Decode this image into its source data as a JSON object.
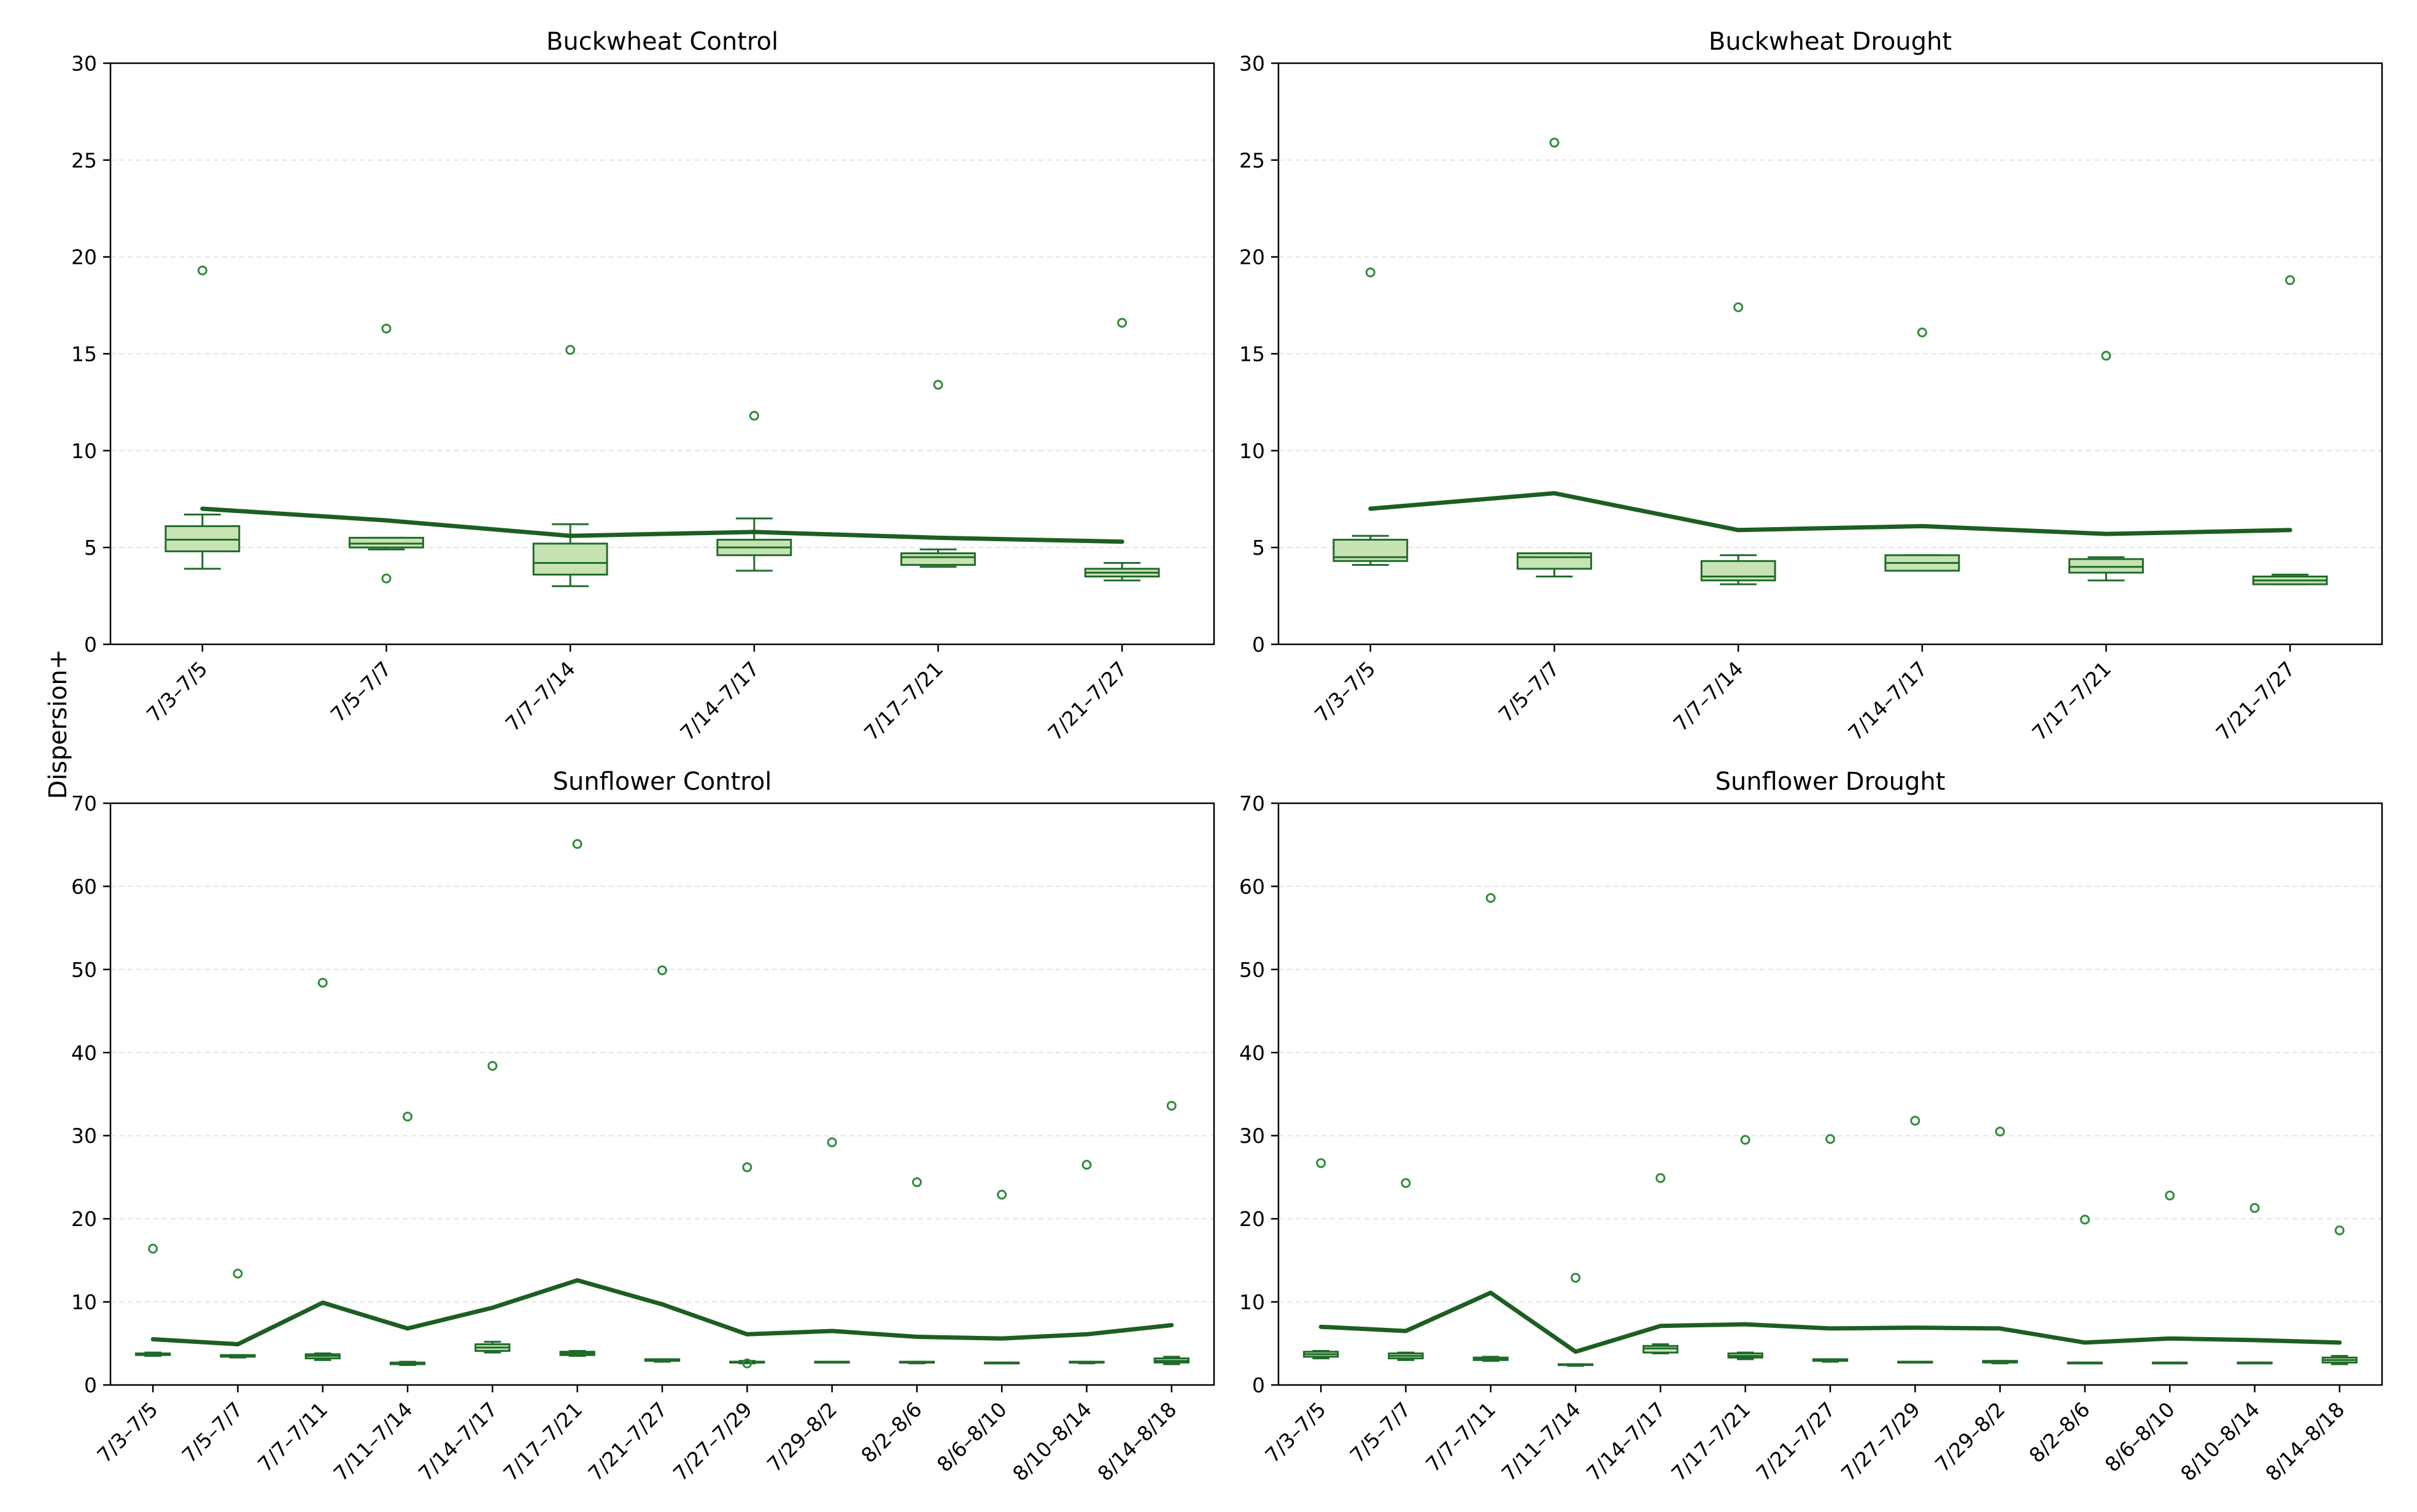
{
  "figure": {
    "ylabel": "Dispersion+",
    "colors": {
      "box_fill": "#c7e3b3",
      "box_edge": "#1f6b2a",
      "mean_line": "#1d5e22",
      "outlier": "#2e8b3a",
      "grid": "#e3e3e3",
      "axis": "#000000"
    }
  },
  "chart_data": [
    {
      "type": "box",
      "title": "Buckwheat Control",
      "ylim": [
        0,
        30
      ],
      "yticks": [
        0,
        5,
        10,
        15,
        20,
        25,
        30
      ],
      "categories": [
        "7/3–7/5",
        "7/5–7/7",
        "7/7–7/14",
        "7/14–7/17",
        "7/17–7/21",
        "7/21–7/27"
      ],
      "boxes": [
        {
          "whislo": 3.9,
          "q1": 4.8,
          "med": 5.4,
          "q3": 6.1,
          "whishi": 6.7,
          "fliers": [
            19.3
          ]
        },
        {
          "whislo": 4.9,
          "q1": 5.0,
          "med": 5.2,
          "q3": 5.5,
          "whishi": 5.5,
          "fliers": [
            16.3,
            3.4
          ]
        },
        {
          "whislo": 3.0,
          "q1": 3.6,
          "med": 4.2,
          "q3": 5.2,
          "whishi": 6.2,
          "fliers": [
            15.2
          ]
        },
        {
          "whislo": 3.8,
          "q1": 4.6,
          "med": 5.0,
          "q3": 5.4,
          "whishi": 6.5,
          "fliers": [
            11.8
          ]
        },
        {
          "whislo": 4.0,
          "q1": 4.1,
          "med": 4.5,
          "q3": 4.7,
          "whishi": 4.9,
          "fliers": [
            13.4
          ]
        },
        {
          "whislo": 3.3,
          "q1": 3.5,
          "med": 3.7,
          "q3": 3.9,
          "whishi": 4.2,
          "fliers": [
            16.6
          ]
        }
      ],
      "mean": [
        7.0,
        6.4,
        5.6,
        5.8,
        5.5,
        5.3
      ]
    },
    {
      "type": "box",
      "title": "Buckwheat Drought",
      "ylim": [
        0,
        30
      ],
      "yticks": [
        0,
        5,
        10,
        15,
        20,
        25,
        30
      ],
      "categories": [
        "7/3–7/5",
        "7/5–7/7",
        "7/7–7/14",
        "7/14–7/17",
        "7/17–7/21",
        "7/21–7/27"
      ],
      "boxes": [
        {
          "whislo": 4.1,
          "q1": 4.3,
          "med": 4.5,
          "q3": 5.4,
          "whishi": 5.6,
          "fliers": [
            19.2
          ]
        },
        {
          "whislo": 3.5,
          "q1": 3.9,
          "med": 4.5,
          "q3": 4.7,
          "whishi": 4.7,
          "fliers": [
            25.9
          ]
        },
        {
          "whislo": 3.1,
          "q1": 3.3,
          "med": 3.5,
          "q3": 4.3,
          "whishi": 4.6,
          "fliers": [
            17.4
          ]
        },
        {
          "whislo": 3.8,
          "q1": 3.8,
          "med": 4.2,
          "q3": 4.6,
          "whishi": 4.6,
          "fliers": [
            16.1
          ]
        },
        {
          "whislo": 3.3,
          "q1": 3.7,
          "med": 4.0,
          "q3": 4.4,
          "whishi": 4.5,
          "fliers": [
            14.9
          ]
        },
        {
          "whislo": 3.1,
          "q1": 3.1,
          "med": 3.3,
          "q3": 3.5,
          "whishi": 3.6,
          "fliers": [
            18.8
          ]
        }
      ],
      "mean": [
        7.0,
        7.8,
        5.9,
        6.1,
        5.7,
        5.9
      ]
    },
    {
      "type": "box",
      "title": "Sunflower Control",
      "ylim": [
        0,
        70
      ],
      "yticks": [
        0,
        10,
        20,
        30,
        40,
        50,
        60,
        70
      ],
      "categories": [
        "7/3–7/5",
        "7/5–7/7",
        "7/7–7/11",
        "7/11–7/14",
        "7/14–7/17",
        "7/17–7/21",
        "7/21–7/27",
        "7/27–7/29",
        "7/29–8/2",
        "8/2–8/6",
        "8/6–8/10",
        "8/10–8/14",
        "8/14–8/18"
      ],
      "boxes": [
        {
          "whislo": 3.5,
          "q1": 3.6,
          "med": 3.7,
          "q3": 3.8,
          "whishi": 3.9,
          "fliers": [
            16.4
          ]
        },
        {
          "whislo": 3.3,
          "q1": 3.4,
          "med": 3.5,
          "q3": 3.6,
          "whishi": 3.6,
          "fliers": [
            13.4
          ]
        },
        {
          "whislo": 3.0,
          "q1": 3.2,
          "med": 3.5,
          "q3": 3.7,
          "whishi": 3.8,
          "fliers": [
            48.4
          ]
        },
        {
          "whislo": 2.4,
          "q1": 2.5,
          "med": 2.6,
          "q3": 2.7,
          "whishi": 2.8,
          "fliers": [
            32.3
          ]
        },
        {
          "whislo": 3.9,
          "q1": 4.1,
          "med": 4.5,
          "q3": 4.9,
          "whishi": 5.2,
          "fliers": [
            38.4
          ]
        },
        {
          "whislo": 3.5,
          "q1": 3.6,
          "med": 3.8,
          "q3": 4.0,
          "whishi": 4.1,
          "fliers": [
            65.1
          ]
        },
        {
          "whislo": 2.8,
          "q1": 2.9,
          "med": 3.0,
          "q3": 3.1,
          "whishi": 3.1,
          "fliers": [
            49.9
          ]
        },
        {
          "whislo": 2.6,
          "q1": 2.7,
          "med": 2.8,
          "q3": 2.8,
          "whishi": 2.9,
          "fliers": [
            26.2,
            2.6
          ]
        },
        {
          "whislo": 2.7,
          "q1": 2.7,
          "med": 2.8,
          "q3": 2.8,
          "whishi": 2.8,
          "fliers": [
            29.2
          ]
        },
        {
          "whislo": 2.6,
          "q1": 2.7,
          "med": 2.7,
          "q3": 2.8,
          "whishi": 2.8,
          "fliers": [
            24.4
          ]
        },
        {
          "whislo": 2.6,
          "q1": 2.6,
          "med": 2.7,
          "q3": 2.7,
          "whishi": 2.7,
          "fliers": [
            22.9
          ]
        },
        {
          "whislo": 2.6,
          "q1": 2.7,
          "med": 2.7,
          "q3": 2.8,
          "whishi": 2.8,
          "fliers": [
            26.5
          ]
        },
        {
          "whislo": 2.5,
          "q1": 2.7,
          "med": 2.9,
          "q3": 3.2,
          "whishi": 3.4,
          "fliers": [
            33.6
          ]
        }
      ],
      "mean": [
        5.5,
        4.9,
        9.9,
        6.8,
        9.3,
        12.6,
        9.7,
        6.1,
        6.5,
        5.8,
        5.6,
        6.1,
        7.2
      ]
    },
    {
      "type": "box",
      "title": "Sunflower Drought",
      "ylim": [
        0,
        70
      ],
      "yticks": [
        0,
        10,
        20,
        30,
        40,
        50,
        60,
        70
      ],
      "categories": [
        "7/3–7/5",
        "7/5–7/7",
        "7/7–7/11",
        "7/11–7/14",
        "7/14–7/17",
        "7/17–7/21",
        "7/21–7/27",
        "7/27–7/29",
        "7/29–8/2",
        "8/2–8/6",
        "8/6–8/10",
        "8/10–8/14",
        "8/14–8/18"
      ],
      "boxes": [
        {
          "whislo": 3.2,
          "q1": 3.4,
          "med": 3.7,
          "q3": 4.0,
          "whishi": 4.1,
          "fliers": [
            26.7
          ]
        },
        {
          "whislo": 3.0,
          "q1": 3.2,
          "med": 3.5,
          "q3": 3.8,
          "whishi": 3.9,
          "fliers": [
            24.3
          ]
        },
        {
          "whislo": 2.9,
          "q1": 3.0,
          "med": 3.1,
          "q3": 3.3,
          "whishi": 3.4,
          "fliers": [
            58.6
          ]
        },
        {
          "whislo": 2.3,
          "q1": 2.4,
          "med": 2.4,
          "q3": 2.5,
          "whishi": 2.5,
          "fliers": [
            12.9
          ]
        },
        {
          "whislo": 3.8,
          "q1": 3.9,
          "med": 4.4,
          "q3": 4.7,
          "whishi": 4.9,
          "fliers": [
            24.9
          ]
        },
        {
          "whislo": 3.1,
          "q1": 3.3,
          "med": 3.5,
          "q3": 3.8,
          "whishi": 3.9,
          "fliers": [
            29.5
          ]
        },
        {
          "whislo": 2.8,
          "q1": 2.9,
          "med": 3.0,
          "q3": 3.1,
          "whishi": 3.1,
          "fliers": [
            29.6
          ]
        },
        {
          "whislo": 2.7,
          "q1": 2.7,
          "med": 2.8,
          "q3": 2.8,
          "whishi": 2.8,
          "fliers": [
            31.8
          ]
        },
        {
          "whislo": 2.6,
          "q1": 2.7,
          "med": 2.8,
          "q3": 2.9,
          "whishi": 2.9,
          "fliers": [
            30.5
          ]
        },
        {
          "whislo": 2.6,
          "q1": 2.6,
          "med": 2.7,
          "q3": 2.7,
          "whishi": 2.7,
          "fliers": [
            19.9
          ]
        },
        {
          "whislo": 2.6,
          "q1": 2.6,
          "med": 2.7,
          "q3": 2.7,
          "whishi": 2.7,
          "fliers": [
            22.8
          ]
        },
        {
          "whislo": 2.6,
          "q1": 2.6,
          "med": 2.7,
          "q3": 2.7,
          "whishi": 2.7,
          "fliers": [
            21.3
          ]
        },
        {
          "whislo": 2.5,
          "q1": 2.7,
          "med": 3.0,
          "q3": 3.3,
          "whishi": 3.5,
          "fliers": [
            18.6
          ]
        }
      ],
      "mean": [
        7.0,
        6.5,
        11.1,
        4.0,
        7.1,
        7.3,
        6.8,
        6.9,
        6.8,
        5.1,
        5.6,
        5.4,
        5.1
      ]
    }
  ]
}
